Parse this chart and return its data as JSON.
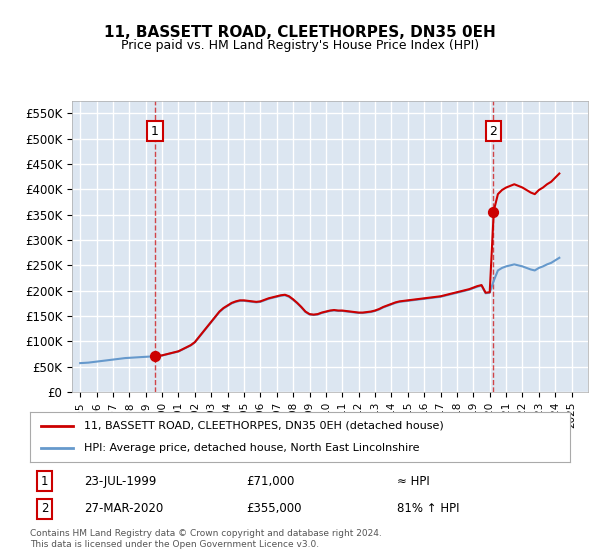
{
  "title": "11, BASSETT ROAD, CLEETHORPES, DN35 0EH",
  "subtitle": "Price paid vs. HM Land Registry's House Price Index (HPI)",
  "xlabel": "",
  "ylabel": "",
  "ylim": [
    0,
    575000
  ],
  "yticks": [
    0,
    50000,
    100000,
    150000,
    200000,
    250000,
    300000,
    350000,
    400000,
    450000,
    500000,
    550000
  ],
  "ytick_labels": [
    "£0",
    "£50K",
    "£100K",
    "£150K",
    "£200K",
    "£250K",
    "£300K",
    "£350K",
    "£400K",
    "£450K",
    "£500K",
    "£550K"
  ],
  "background_color": "#dce6f1",
  "plot_bg_color": "#dce6f1",
  "grid_color": "#ffffff",
  "red_line_color": "#cc0000",
  "blue_line_color": "#6699cc",
  "transaction1": {
    "date": 1999.56,
    "price": 71000,
    "label": "1"
  },
  "transaction2": {
    "date": 2020.23,
    "price": 355000,
    "label": "2"
  },
  "legend_label1": "11, BASSETT ROAD, CLEETHORPES, DN35 0EH (detached house)",
  "legend_label2": "HPI: Average price, detached house, North East Lincolnshire",
  "table_row1": [
    "1",
    "23-JUL-1999",
    "£71,000",
    "≈ HPI"
  ],
  "table_row2": [
    "2",
    "27-MAR-2020",
    "£355,000",
    "81% ↑ HPI"
  ],
  "footnote": "Contains HM Land Registry data © Crown copyright and database right 2024.\nThis data is licensed under the Open Government Licence v3.0.",
  "xmin": 1994.5,
  "xmax": 2026.0,
  "hpi_years": [
    1995,
    1995.25,
    1995.5,
    1995.75,
    1996,
    1996.25,
    1996.5,
    1996.75,
    1997,
    1997.25,
    1997.5,
    1997.75,
    1998,
    1998.25,
    1998.5,
    1998.75,
    1999,
    1999.25,
    1999.5,
    1999.75,
    2000,
    2000.25,
    2000.5,
    2000.75,
    2001,
    2001.25,
    2001.5,
    2001.75,
    2002,
    2002.25,
    2002.5,
    2002.75,
    2003,
    2003.25,
    2003.5,
    2003.75,
    2004,
    2004.25,
    2004.5,
    2004.75,
    2005,
    2005.25,
    2005.5,
    2005.75,
    2006,
    2006.25,
    2006.5,
    2006.75,
    2007,
    2007.25,
    2007.5,
    2007.75,
    2008,
    2008.25,
    2008.5,
    2008.75,
    2009,
    2009.25,
    2009.5,
    2009.75,
    2010,
    2010.25,
    2010.5,
    2010.75,
    2011,
    2011.25,
    2011.5,
    2011.75,
    2012,
    2012.25,
    2012.5,
    2012.75,
    2013,
    2013.25,
    2013.5,
    2013.75,
    2014,
    2014.25,
    2014.5,
    2014.75,
    2015,
    2015.25,
    2015.5,
    2015.75,
    2016,
    2016.25,
    2016.5,
    2016.75,
    2017,
    2017.25,
    2017.5,
    2017.75,
    2018,
    2018.25,
    2018.5,
    2018.75,
    2019,
    2019.25,
    2019.5,
    2019.75,
    2020,
    2020.25,
    2020.5,
    2020.75,
    2021,
    2021.25,
    2021.5,
    2021.75,
    2022,
    2022.25,
    2022.5,
    2022.75,
    2023,
    2023.25,
    2023.5,
    2023.75,
    2024,
    2024.25
  ],
  "hpi_values": [
    57000,
    57500,
    58000,
    59000,
    60000,
    61000,
    62000,
    63000,
    64000,
    65000,
    66000,
    67000,
    67500,
    68000,
    68500,
    69000,
    69500,
    70000,
    70500,
    71000,
    72000,
    74000,
    76000,
    78000,
    80000,
    84000,
    88000,
    92000,
    98000,
    108000,
    118000,
    128000,
    138000,
    148000,
    158000,
    165000,
    170000,
    175000,
    178000,
    180000,
    180000,
    179000,
    178000,
    177000,
    178000,
    181000,
    184000,
    186000,
    188000,
    190000,
    191000,
    188000,
    182000,
    175000,
    167000,
    158000,
    153000,
    152000,
    153000,
    156000,
    158000,
    160000,
    161000,
    160000,
    160000,
    159000,
    158000,
    157000,
    156000,
    156000,
    157000,
    158000,
    160000,
    163000,
    167000,
    170000,
    173000,
    176000,
    178000,
    179000,
    180000,
    181000,
    182000,
    183000,
    184000,
    185000,
    186000,
    187000,
    188000,
    190000,
    192000,
    194000,
    196000,
    198000,
    200000,
    202000,
    205000,
    208000,
    210000,
    195000,
    196000,
    220000,
    240000,
    245000,
    248000,
    250000,
    252000,
    250000,
    248000,
    245000,
    242000,
    240000,
    245000,
    248000,
    252000,
    255000,
    260000,
    265000
  ],
  "price_years": [
    1999.56,
    2020.23
  ],
  "price_values": [
    71000,
    355000
  ]
}
